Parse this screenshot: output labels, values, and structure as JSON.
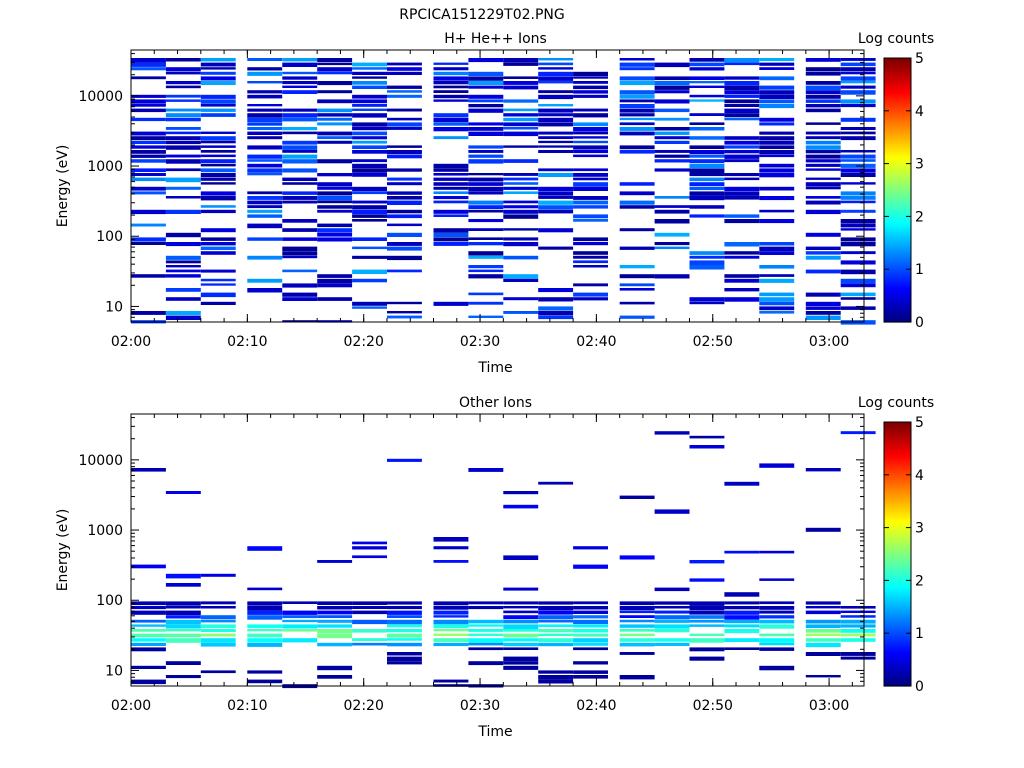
{
  "file_title": "RPCICA151229T02.PNG",
  "charts": [
    {
      "type": "heatmap",
      "title": "H+ He++ Ions",
      "xlabel": "Time",
      "ylabel": "Energy (eV)",
      "colorbar_label": "Log counts",
      "y_scale": "log",
      "ylim": [
        6,
        45000
      ],
      "xlim": [
        "02:00",
        "03:03"
      ],
      "x_ticks": [
        "02:00",
        "02:10",
        "02:20",
        "02:30",
        "02:40",
        "02:50",
        "03:00"
      ],
      "y_ticks": [
        "10",
        "100",
        "1000",
        "10000"
      ],
      "colorbar_ticks": [
        "0",
        "1",
        "2",
        "3",
        "4",
        "5"
      ],
      "colorbar_range": [
        0,
        5
      ],
      "time_bins": [
        "02:00",
        "02:03",
        "02:06",
        "02:10",
        "02:13",
        "02:16",
        "02:19",
        "02:22",
        "02:26",
        "02:29",
        "02:32",
        "02:35",
        "02:38",
        "02:42",
        "02:45",
        "02:48",
        "02:51",
        "02:54",
        "02:58",
        "03:01"
      ],
      "typical_log_counts": 0.6
    },
    {
      "type": "heatmap",
      "title": "Other Ions",
      "xlabel": "Time",
      "ylabel": "Energy (eV)",
      "colorbar_label": "Log counts",
      "y_scale": "log",
      "ylim": [
        6,
        45000
      ],
      "xlim": [
        "02:00",
        "03:03"
      ],
      "x_ticks": [
        "02:00",
        "02:10",
        "02:20",
        "02:30",
        "02:40",
        "02:50",
        "03:00"
      ],
      "y_ticks": [
        "10",
        "100",
        "1000",
        "10000"
      ],
      "colorbar_ticks": [
        "0",
        "1",
        "2",
        "3",
        "4",
        "5"
      ],
      "colorbar_range": [
        0,
        5
      ],
      "time_bins": [
        "02:00",
        "02:03",
        "02:06",
        "02:10",
        "02:13",
        "02:16",
        "02:19",
        "02:22",
        "02:26",
        "02:29",
        "02:32",
        "02:35",
        "02:38",
        "02:42",
        "02:45",
        "02:48",
        "02:51",
        "02:54",
        "02:58",
        "03:01"
      ],
      "peak_energy_eV": [
        25,
        45
      ],
      "peak_log_counts": 2.5
    }
  ]
}
